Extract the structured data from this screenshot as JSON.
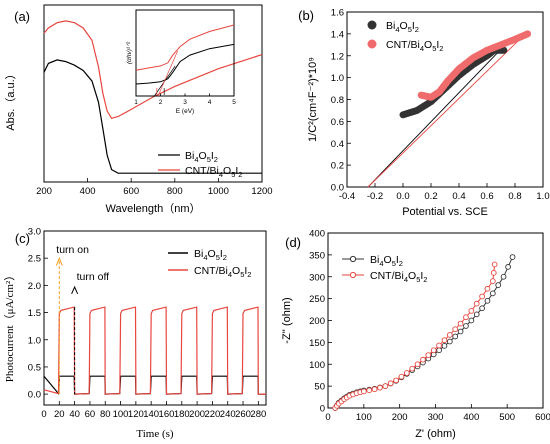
{
  "chart_data": [
    {
      "panel": "(a)",
      "type": "line",
      "xlabel": "Wavelength（nm）",
      "ylabel": "Abs.（a.u.）",
      "xlim": [
        200,
        1200
      ],
      "xticks": [
        200,
        400,
        600,
        800,
        1000,
        1200
      ],
      "legend": "bottom-right",
      "series": [
        {
          "name": "Bi₄O₅I₂",
          "color": "#000000",
          "x": [
            200,
            220,
            260,
            300,
            340,
            380,
            420,
            450,
            470,
            490,
            510,
            540,
            600,
            700,
            800,
            1000,
            1200
          ],
          "y": [
            0.62,
            0.67,
            0.69,
            0.68,
            0.66,
            0.63,
            0.57,
            0.45,
            0.3,
            0.15,
            0.07,
            0.05,
            0.05,
            0.05,
            0.05,
            0.05,
            0.05
          ]
        },
        {
          "name": "CNT/Bi₄O₅I₂",
          "color": "#e8463f",
          "x": [
            200,
            220,
            260,
            300,
            340,
            380,
            420,
            450,
            470,
            490,
            510,
            540,
            600,
            700,
            800,
            1000,
            1200
          ],
          "y": [
            0.84,
            0.87,
            0.9,
            0.91,
            0.9,
            0.87,
            0.8,
            0.65,
            0.5,
            0.4,
            0.36,
            0.37,
            0.41,
            0.48,
            0.54,
            0.64,
            0.72
          ]
        }
      ],
      "inset": {
        "ylabel": "(αhν)¹ᐟ²",
        "xlabel": "E (eV)",
        "xlim": [
          1,
          5
        ],
        "xticks": [
          1,
          2,
          3,
          4,
          5
        ],
        "series": [
          {
            "color": "#000000",
            "x": [
              1,
              1.5,
              2.0,
              2.3,
              2.5,
              2.8,
              3.2,
              4.0,
              5.0
            ],
            "y": [
              0.28,
              0.3,
              0.33,
              0.4,
              0.55,
              0.8,
              0.95,
              1.1,
              1.2
            ]
          },
          {
            "color": "#e8463f",
            "x": [
              1,
              1.5,
              2.0,
              2.3,
              2.5,
              2.8,
              3.2,
              4.0,
              5.0
            ],
            "y": [
              0.6,
              0.65,
              0.7,
              0.77,
              0.95,
              1.15,
              1.32,
              1.5,
              1.65
            ]
          }
        ]
      }
    },
    {
      "panel": "(b)",
      "type": "scatter",
      "xlabel": "Potential vs. SCE",
      "ylabel": "1/C²(cm⁴F⁻²)*10⁹",
      "xlim": [
        -0.4,
        1.0
      ],
      "ylim": [
        0,
        1.6
      ],
      "xticks": [
        -0.4,
        -0.2,
        0.0,
        0.2,
        0.4,
        0.6,
        0.8,
        1.0
      ],
      "yticks": [
        0.0,
        0.2,
        0.4,
        0.6,
        0.8,
        1.0,
        1.2,
        1.4,
        1.6
      ],
      "legend": "top-left",
      "series": [
        {
          "name": "Bi₄O₅I₂",
          "color": "#333333",
          "x_start": 0.0,
          "x_end": 0.72,
          "points": [
            [
              0.0,
              0.66
            ],
            [
              0.1,
              0.7
            ],
            [
              0.2,
              0.78
            ],
            [
              0.3,
              0.9
            ],
            [
              0.4,
              1.02
            ],
            [
              0.5,
              1.12
            ],
            [
              0.6,
              1.2
            ],
            [
              0.65,
              1.25
            ],
            [
              0.72,
              1.25
            ]
          ],
          "fit": [
            [
              -0.25,
              0.0
            ],
            [
              0.7,
              1.26
            ]
          ]
        },
        {
          "name": "CNT/Bi₄O₅I₂",
          "color": "#f06c6c",
          "x_start": 0.13,
          "x_end": 0.89,
          "points": [
            [
              0.13,
              0.84
            ],
            [
              0.2,
              0.82
            ],
            [
              0.26,
              0.87
            ],
            [
              0.32,
              0.97
            ],
            [
              0.4,
              1.08
            ],
            [
              0.5,
              1.18
            ],
            [
              0.6,
              1.25
            ],
            [
              0.7,
              1.3
            ],
            [
              0.8,
              1.35
            ],
            [
              0.89,
              1.4
            ]
          ],
          "fit": [
            [
              -0.25,
              0.0
            ],
            [
              0.85,
              1.37
            ]
          ]
        }
      ]
    },
    {
      "panel": "(c)",
      "type": "line",
      "xlabel": "Time (s)",
      "ylabel": "Photocurrent（μA/cm²）",
      "xlim": [
        0,
        290
      ],
      "ylim": [
        -0.2,
        3.0
      ],
      "xticks": [
        0,
        20,
        40,
        60,
        80,
        100,
        120,
        140,
        160,
        180,
        200,
        220,
        240,
        260,
        280
      ],
      "yticks": [
        0.0,
        0.5,
        1.0,
        1.5,
        2.0,
        2.5,
        3.0
      ],
      "legend": "top-right",
      "annotations": [
        {
          "text": "turn on"
        },
        {
          "text": "turn off"
        }
      ],
      "series": [
        {
          "name": "Bi₄O₅I₂",
          "color": "#000000",
          "on": 0.33,
          "off": 0.0,
          "initial": 0.33
        },
        {
          "name": "CNT/Bi₄O₅I₂",
          "color": "#e8463f",
          "on": 1.6,
          "off": 0.0,
          "initial": 0.08
        }
      ],
      "cycles": [
        [
          20,
          40
        ],
        [
          60,
          80
        ],
        [
          100,
          120
        ],
        [
          140,
          160
        ],
        [
          180,
          200
        ],
        [
          220,
          240
        ],
        [
          260,
          280
        ]
      ]
    },
    {
      "panel": "(d)",
      "type": "line",
      "xlabel": "Z' (ohm)",
      "ylabel": "-Z'' (ohm)",
      "xlim": [
        0,
        600
      ],
      "ylim": [
        0,
        400
      ],
      "xticks": [
        0,
        100,
        200,
        300,
        400,
        500,
        600
      ],
      "yticks": [
        0,
        50,
        100,
        150,
        200,
        250,
        300,
        350,
        400
      ],
      "legend": "top-left",
      "series": [
        {
          "name": "Bi₄O₅I₂",
          "color": "#333333",
          "points": [
            [
              20,
              0
            ],
            [
              30,
              12
            ],
            [
              45,
              22
            ],
            [
              60,
              30
            ],
            [
              80,
              36
            ],
            [
              100,
              40
            ],
            [
              130,
              44
            ],
            [
              160,
              50
            ],
            [
              190,
              62
            ],
            [
              220,
              78
            ],
            [
              250,
              95
            ],
            [
              280,
              113
            ],
            [
              310,
              132
            ],
            [
              340,
              152
            ],
            [
              370,
              175
            ],
            [
              400,
              200
            ],
            [
              430,
              228
            ],
            [
              460,
              262
            ],
            [
              490,
              300
            ],
            [
              515,
              345
            ]
          ]
        },
        {
          "name": "CNT/Bi₄O₅I₂",
          "color": "#e8463f",
          "points": [
            [
              20,
              0
            ],
            [
              30,
              10
            ],
            [
              45,
              20
            ],
            [
              60,
              28
            ],
            [
              80,
              34
            ],
            [
              100,
              38
            ],
            [
              130,
              43
            ],
            [
              160,
              50
            ],
            [
              190,
              63
            ],
            [
              220,
              80
            ],
            [
              250,
              100
            ],
            [
              280,
              121
            ],
            [
              310,
              143
            ],
            [
              340,
              167
            ],
            [
              370,
              193
            ],
            [
              400,
              222
            ],
            [
              430,
              255
            ],
            [
              460,
              290
            ],
            [
              465,
              328
            ]
          ]
        }
      ]
    }
  ]
}
